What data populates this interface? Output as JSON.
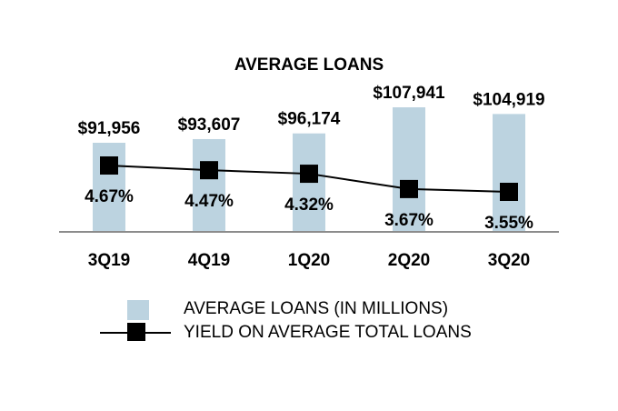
{
  "chart_data": {
    "type": "bar",
    "title": "AVERAGE LOANS",
    "categories": [
      "3Q19",
      "4Q19",
      "1Q20",
      "2Q20",
      "3Q20"
    ],
    "series": [
      {
        "name": "AVERAGE LOANS (IN MILLIONS)",
        "type": "bar",
        "values": [
          91956,
          93607,
          96174,
          107941,
          104919
        ],
        "labels": [
          "$91,956",
          "$93,607",
          "$96,174",
          "$107,941",
          "$104,919"
        ],
        "color": "#bcd3e0"
      },
      {
        "name": "YIELD ON AVERAGE TOTAL LOANS",
        "type": "line",
        "values": [
          4.67,
          4.47,
          4.32,
          3.67,
          3.55
        ],
        "labels": [
          "4.67%",
          "4.47%",
          "4.32%",
          "3.67%",
          "3.55%"
        ],
        "color": "#000000"
      }
    ],
    "legend": "bottom",
    "grid": false
  }
}
